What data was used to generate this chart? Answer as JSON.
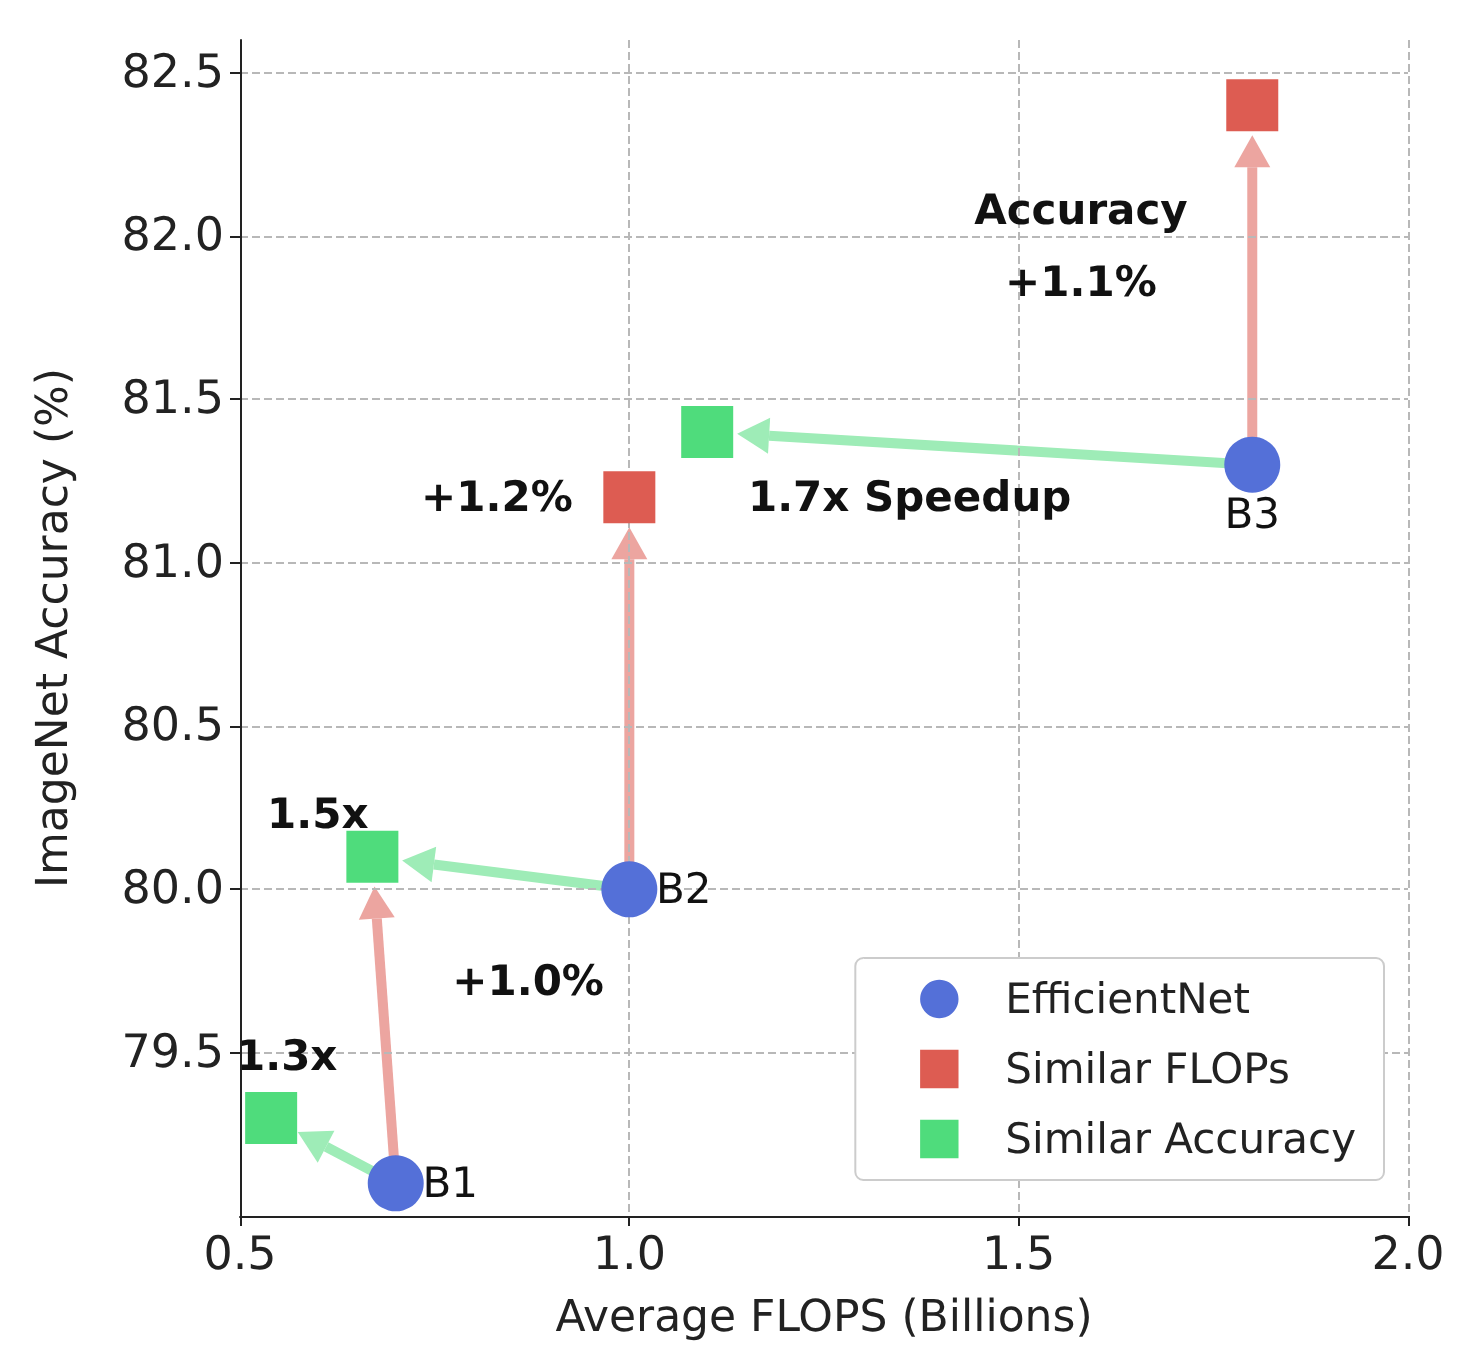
{
  "chart_data": {
    "type": "scatter",
    "xlabel": "Average FLOPS (Billions)",
    "ylabel": "ImageNet Accuracy (%)",
    "xlim": [
      0.5,
      2.0
    ],
    "xticks": [
      {
        "value": 0.5,
        "label": "0.5"
      },
      {
        "value": 1,
        "label": "1.0"
      },
      {
        "value": 1.5,
        "label": "1.5"
      },
      {
        "value": 2,
        "label": "2.0"
      }
    ],
    "ylim": [
      79.0,
      82.6
    ],
    "yticks": [
      {
        "value": 79.5,
        "label": "79.5"
      },
      {
        "value": 80,
        "label": "80.0"
      },
      {
        "value": 80.5,
        "label": "80.5"
      },
      {
        "value": 81,
        "label": "81.0"
      },
      {
        "value": 81.5,
        "label": "81.5"
      },
      {
        "value": 82,
        "label": "82.0"
      },
      {
        "value": 82.5,
        "label": "82.5"
      }
    ],
    "grid": true,
    "legend": "bottom right",
    "series": [
      {
        "name": "EfficientNet",
        "color": "#5470d8",
        "marker": "circle",
        "x": [
          0.7,
          1.0,
          1.8
        ],
        "values": [
          79.1,
          80.0,
          81.3
        ]
      },
      {
        "name": "Similar FLOPs",
        "color": "#dd5c52",
        "marker": "square",
        "x": [
          1.0,
          1.8
        ],
        "values": [
          81.2,
          82.4
        ]
      },
      {
        "name": "Similar Accuracy",
        "color": "#4fdc7c",
        "marker": "square",
        "x": [
          0.54,
          0.67,
          1.1
        ],
        "values": [
          79.3,
          80.1,
          81.4
        ]
      }
    ],
    "annotations": [
      "B1",
      "B2",
      "B3",
      "+1.2%",
      "+1.0%",
      "1.5x",
      "1.3x",
      "1.7x Speedup",
      "Accuracy\n+1.1%"
    ]
  }
}
